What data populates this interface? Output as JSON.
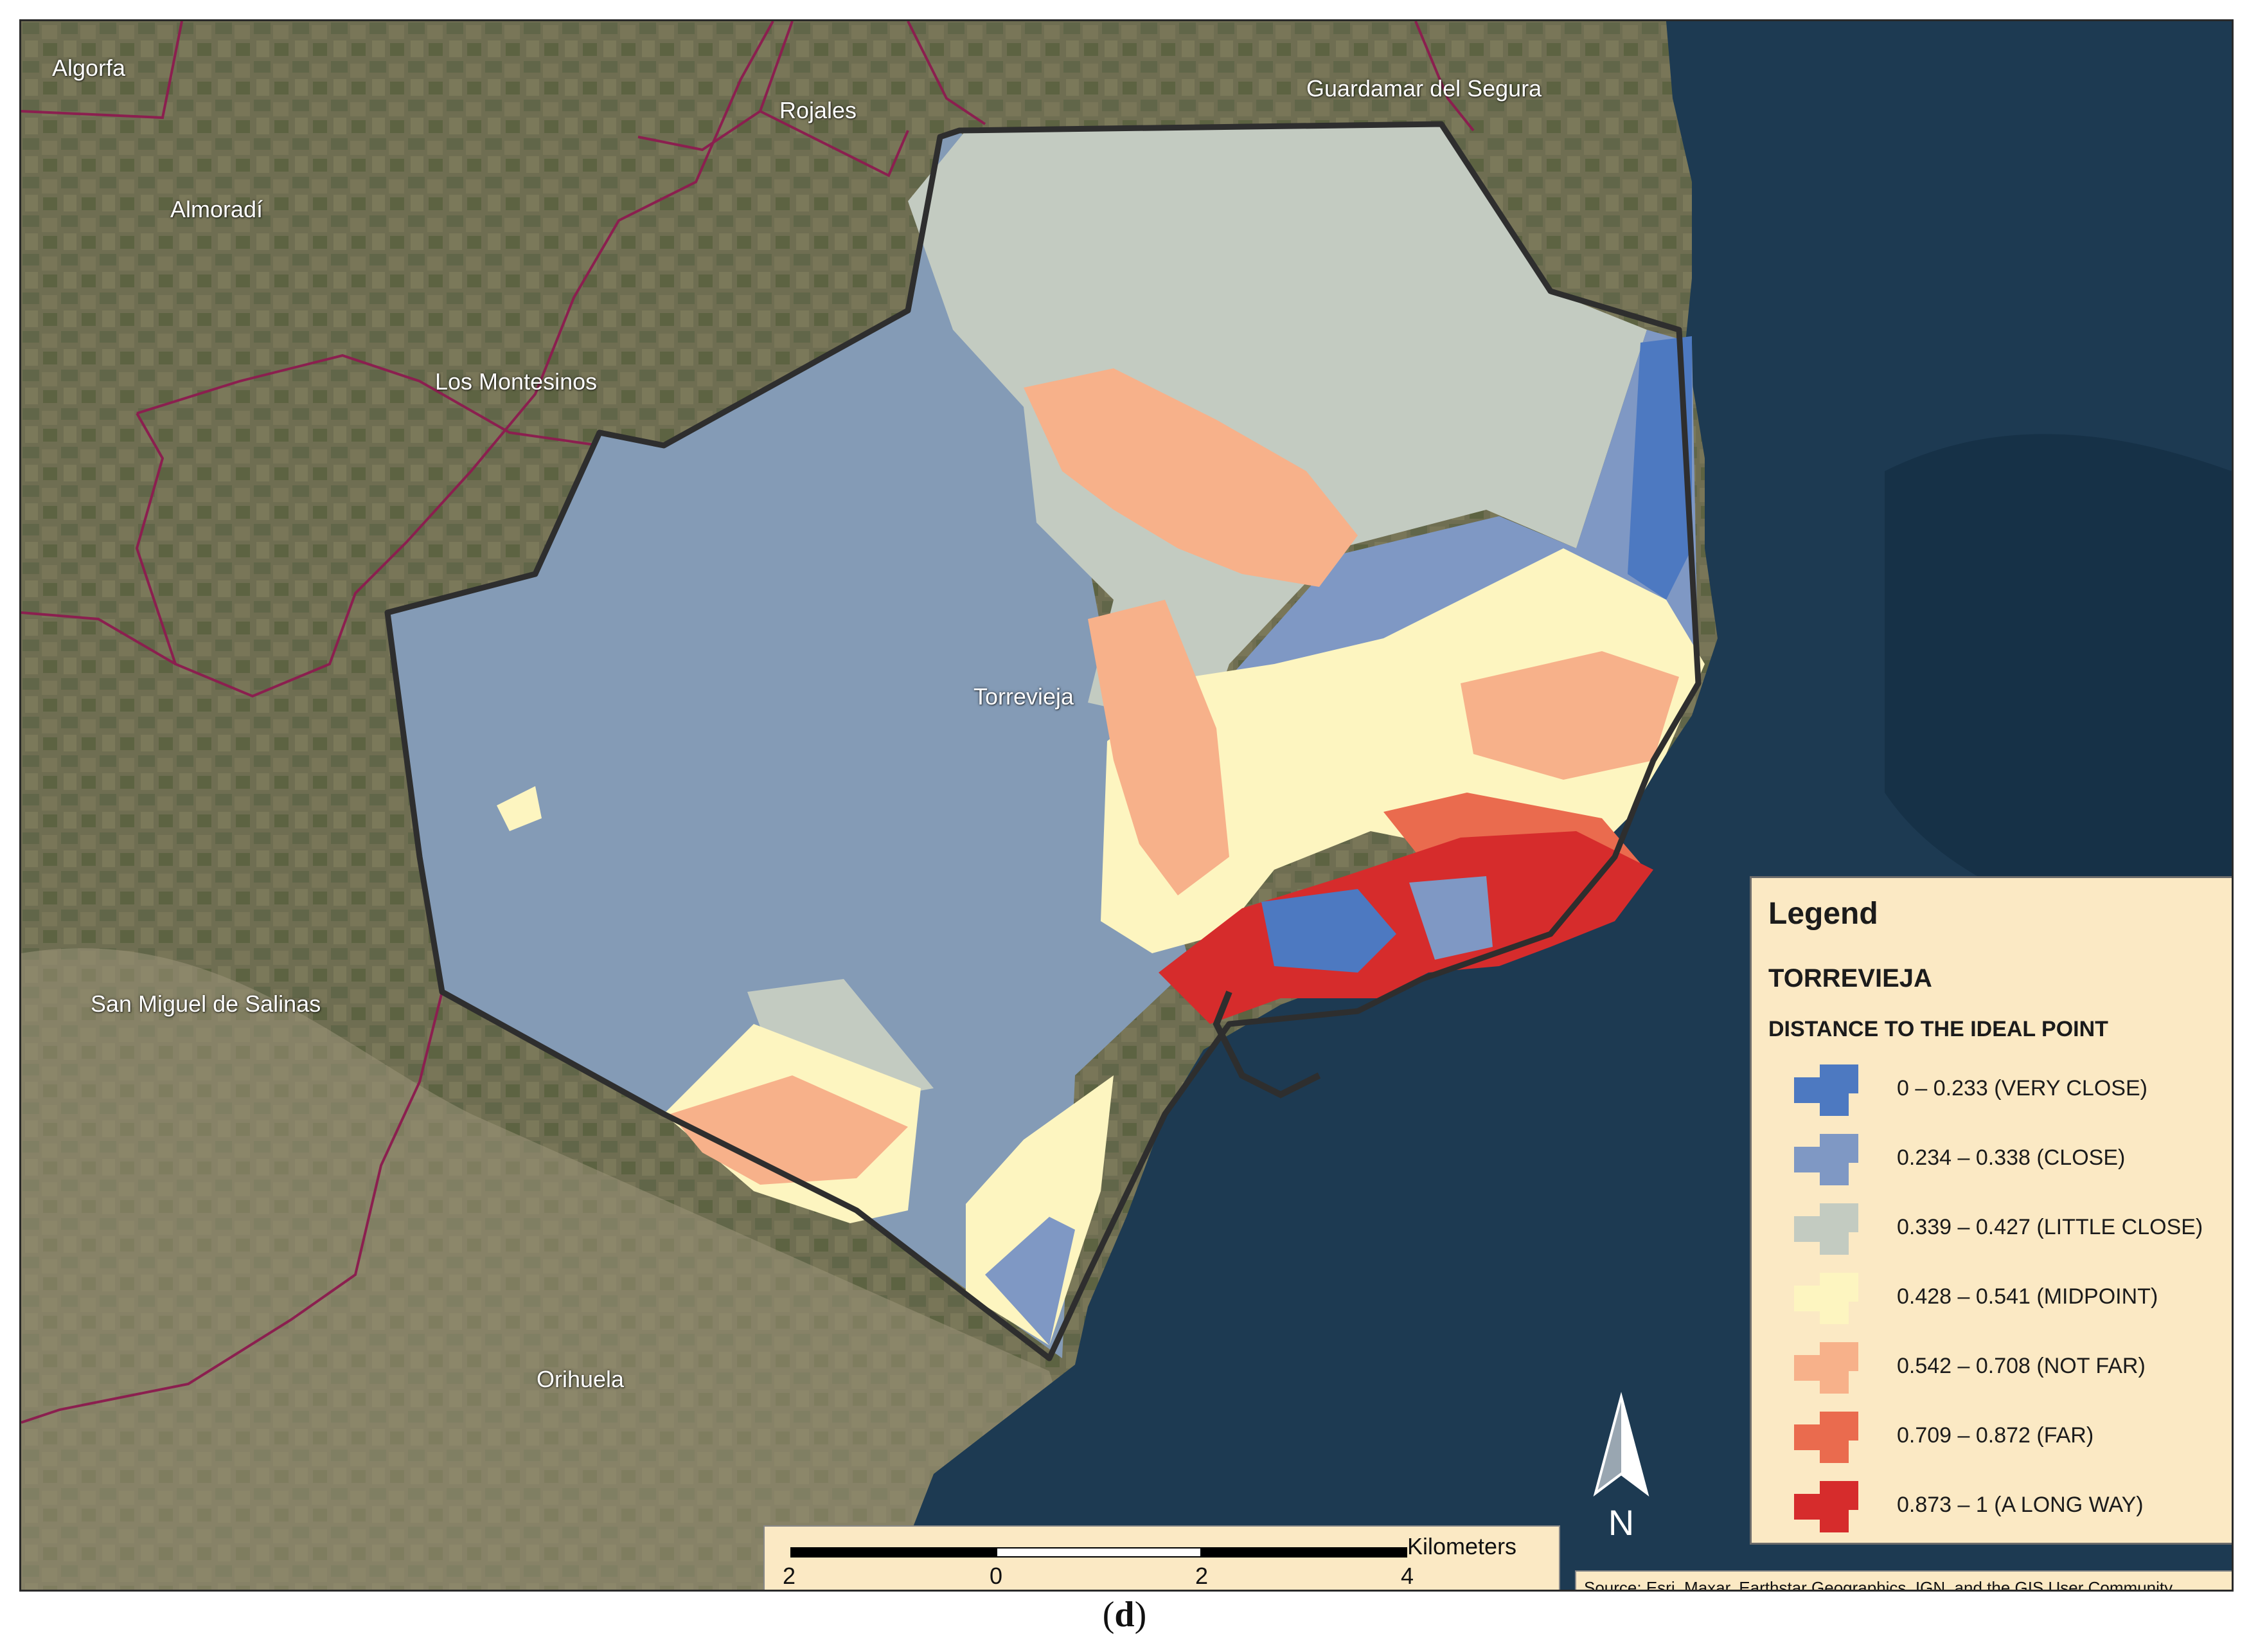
{
  "map": {
    "places": [
      {
        "name": "Algorfa",
        "key": "algorfa"
      },
      {
        "name": "Rojales",
        "key": "rojales"
      },
      {
        "name": "Guardamar del Segura",
        "key": "guardamar"
      },
      {
        "name": "Almoradí",
        "key": "almoradi"
      },
      {
        "name": "Los Montesinos",
        "key": "montesinos"
      },
      {
        "name": "Torrevieja",
        "key": "torrevieja"
      },
      {
        "name": "San Miguel de Salinas",
        "key": "san-miguel"
      },
      {
        "name": "Orihuela",
        "key": "orihuela"
      }
    ],
    "colors": {
      "land": "#6f6e52",
      "sea": "#1d3a52",
      "municipal_boundary": "#8b1f4f",
      "study_boundary": "#2e2e2e",
      "lagoon": "#849bb6"
    }
  },
  "legend": {
    "title": "Legend",
    "layer": "TORREVIEJA",
    "field": "DISTANCE TO THE IDEAL POINT",
    "classes": [
      {
        "label": "0 – 0.233 (VERY CLOSE)",
        "color": "#4d79c1"
      },
      {
        "label": "0.234 – 0.338 (CLOSE)",
        "color": "#7f98c4"
      },
      {
        "label": "0.339 – 0.427 (LITTLE CLOSE)",
        "color": "#c3cbc1"
      },
      {
        "label": "0.428 – 0.541 (MIDPOINT)",
        "color": "#fdf5c0"
      },
      {
        "label": "0.542 – 0.708 (NOT FAR)",
        "color": "#f7b18a"
      },
      {
        "label": "0.709 – 0.872 (FAR)",
        "color": "#ea6b4e"
      },
      {
        "label": "0.873 – 1 (A LONG WAY)",
        "color": "#d62c2c"
      }
    ]
  },
  "scalebar": {
    "ticks": [
      "2",
      "0",
      "2",
      "4"
    ],
    "unit": "Kilometers"
  },
  "north": {
    "label": "N"
  },
  "source": "Source: Esri, Maxar, Earthstar Geographics, IGN, and the GIS User Community",
  "caption": {
    "open": "(",
    "letter": "d",
    "close": ")"
  }
}
